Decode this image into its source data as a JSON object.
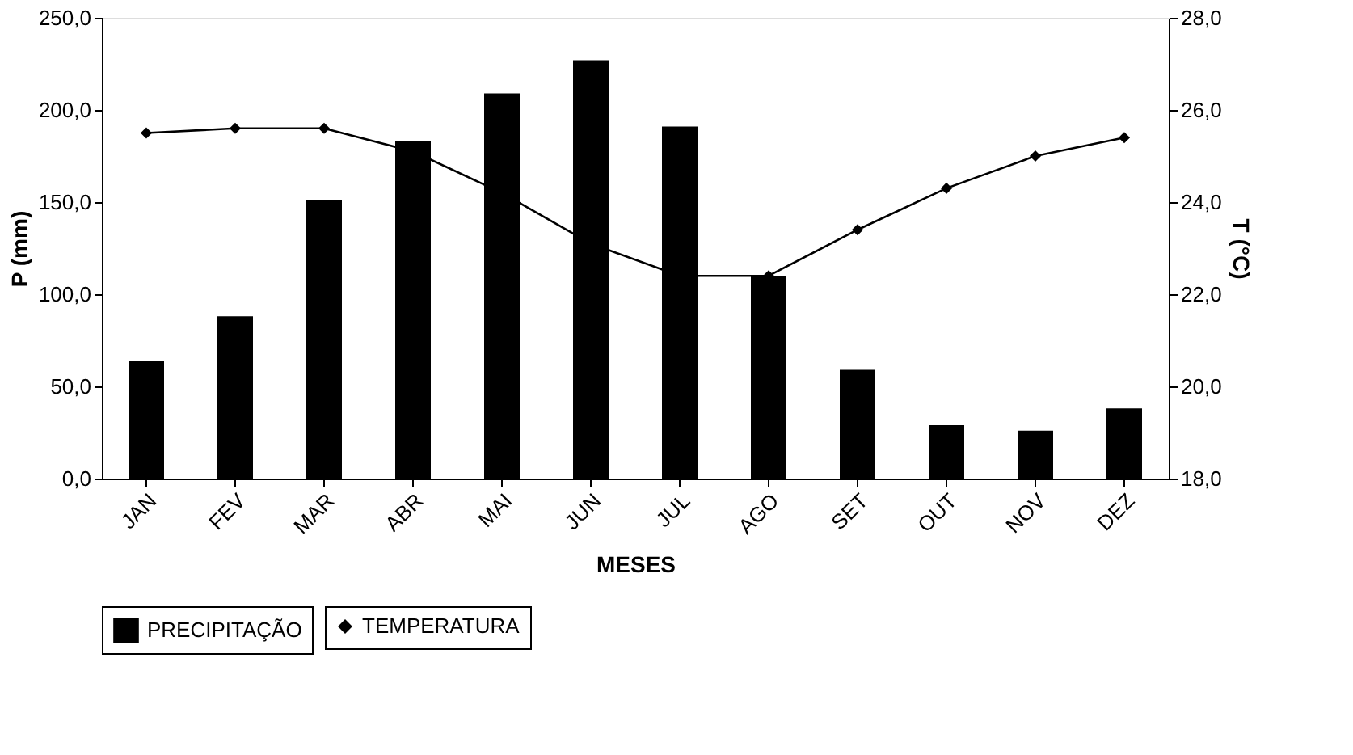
{
  "chart_data": {
    "type": "bar",
    "xlabel": "MESES",
    "ylabel": "P (mm)",
    "y2label": "T (°C)",
    "categories": [
      "JAN",
      "FEV",
      "MAR",
      "ABR",
      "MAI",
      "JUN",
      "JUL",
      "AGO",
      "SET",
      "OUT",
      "NOV",
      "DEZ"
    ],
    "series": [
      {
        "name": "PRECIPITAÇÃO",
        "color": "#000000",
        "values": [
          64,
          88,
          151,
          183,
          209,
          227,
          191,
          110,
          59,
          29,
          26,
          38
        ]
      },
      {
        "name": "TEMPERATURA",
        "color": "#000000",
        "type": "line",
        "axis": "y2",
        "marker": "diamond",
        "line_style": "solid",
        "values": [
          25.5,
          25.6,
          25.6,
          25.1,
          24.2,
          23.1,
          22.4,
          22.4,
          23.4,
          24.3,
          25.0,
          25.4
        ]
      }
    ],
    "ylim": [
      0,
      250
    ],
    "yticks": [
      {
        "value": 0,
        "label": "0,0"
      },
      {
        "value": 50,
        "label": "50,0"
      },
      {
        "value": 100,
        "label": "100,0"
      },
      {
        "value": 150,
        "label": "150,0"
      },
      {
        "value": 200,
        "label": "200,0"
      },
      {
        "value": 250,
        "label": "250,0"
      }
    ],
    "y2lim": [
      18,
      28
    ],
    "y2ticks": [
      {
        "value": 18,
        "label": "18,0"
      },
      {
        "value": 20,
        "label": "20,0"
      },
      {
        "value": 22,
        "label": "22,0"
      },
      {
        "value": 24,
        "label": "24,0"
      },
      {
        "value": 26,
        "label": "26,0"
      },
      {
        "value": 28,
        "label": "28,0"
      }
    ],
    "grid": false,
    "legend": "bottom"
  }
}
